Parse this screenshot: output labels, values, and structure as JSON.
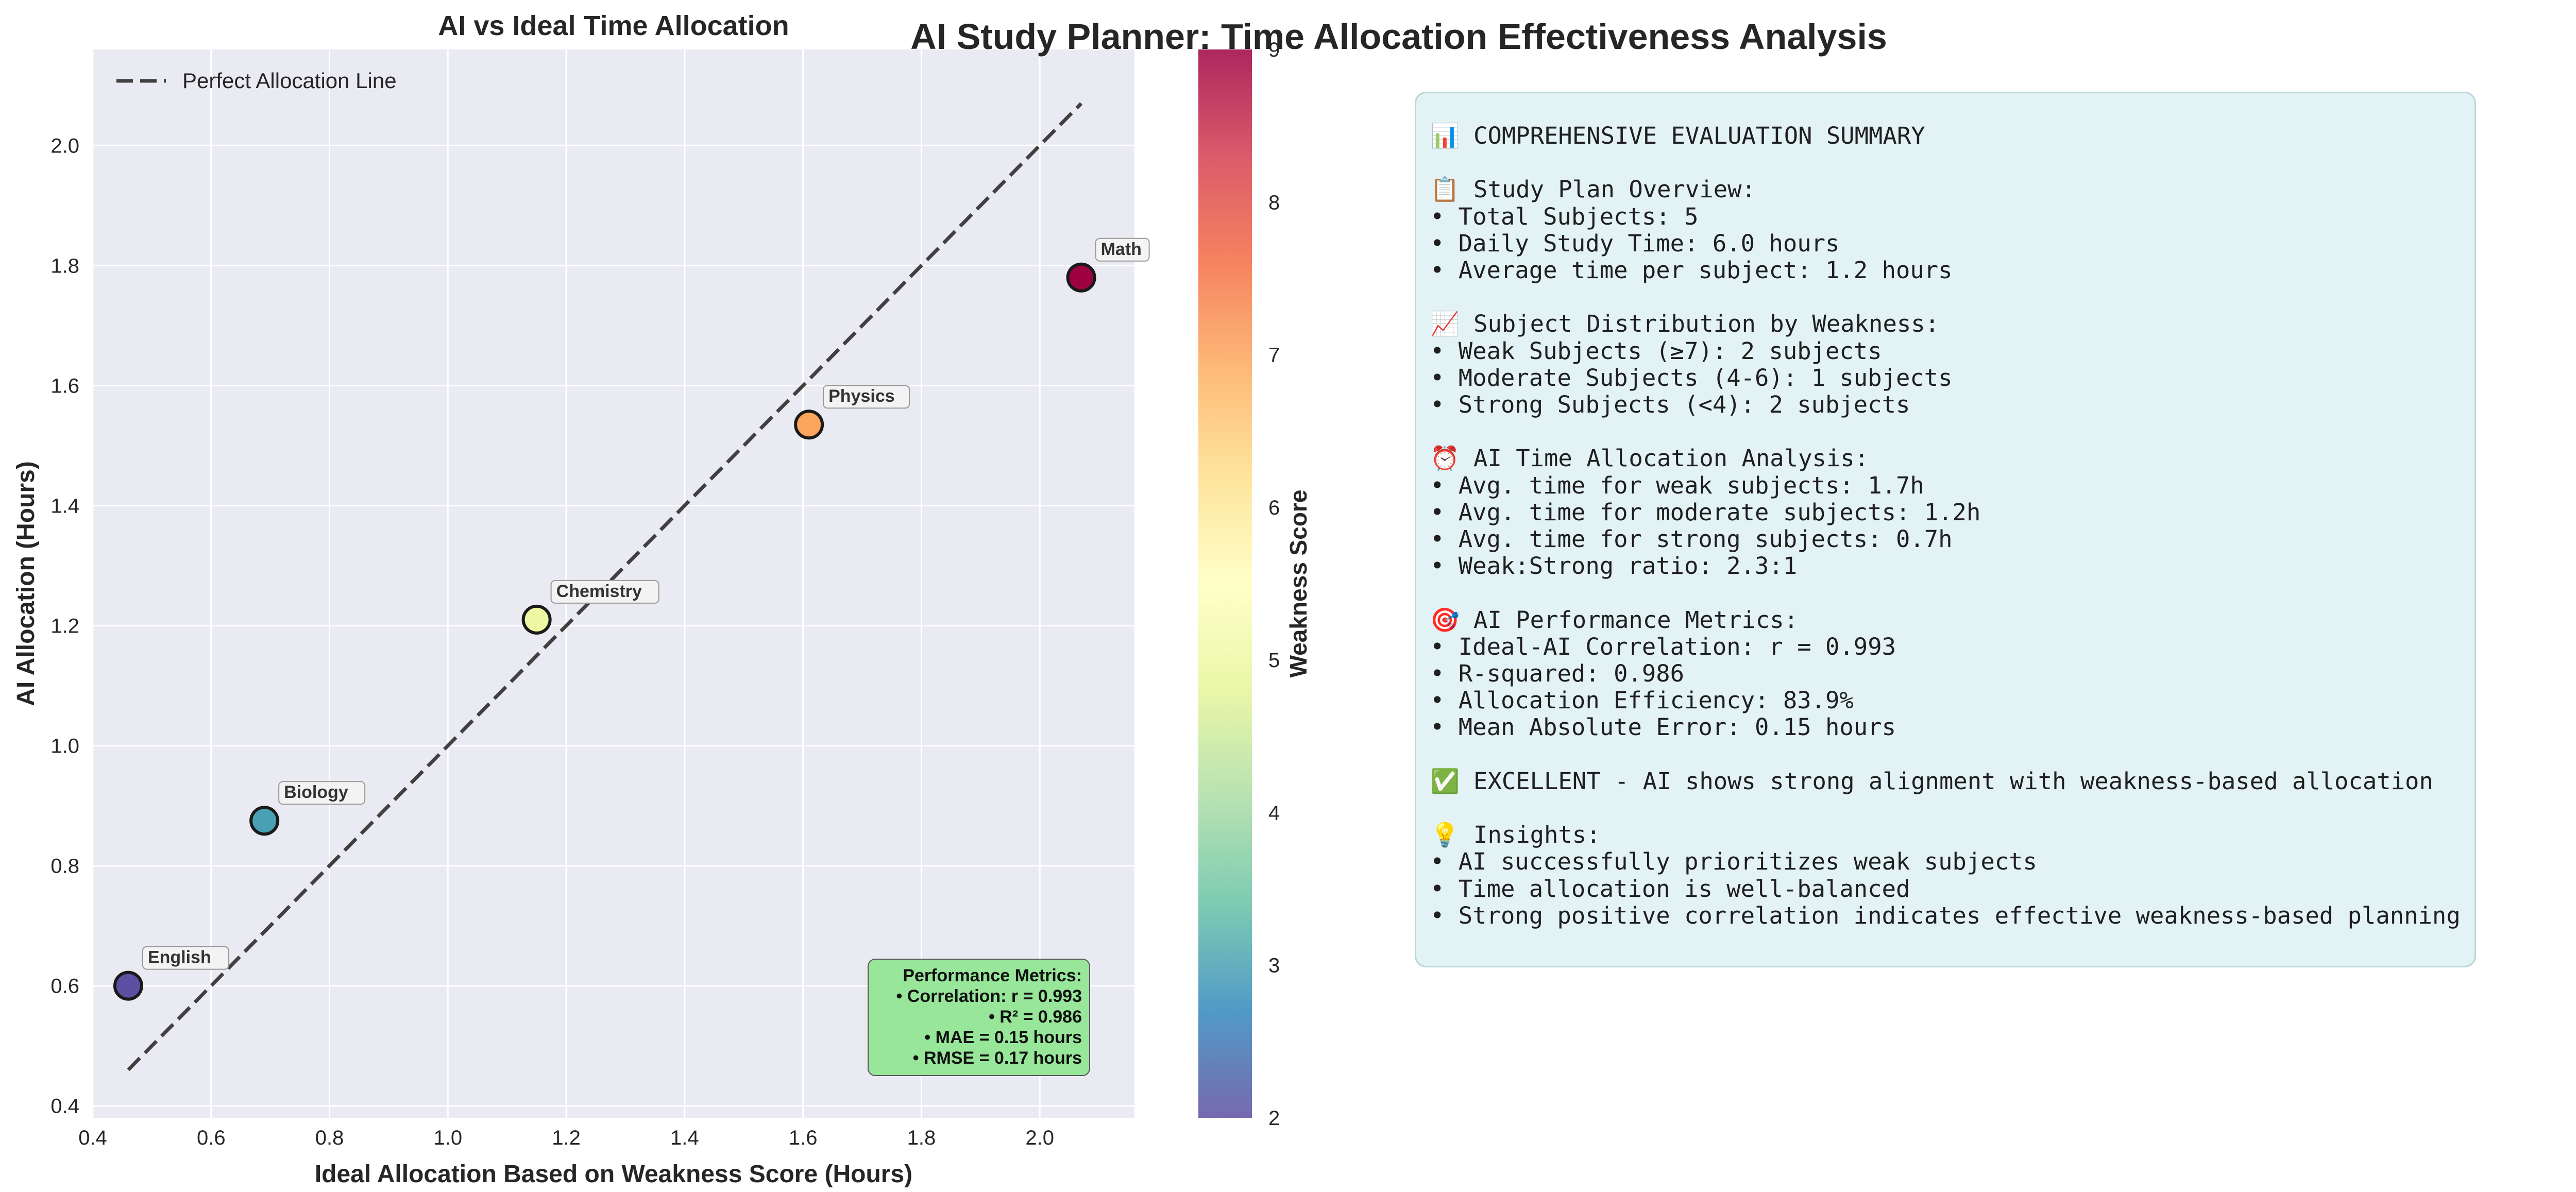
{
  "suptitle": "AI Study Planner: Time Allocation Effectiveness Analysis",
  "chart_data": {
    "type": "scatter",
    "title": "AI vs Ideal Time Allocation",
    "xlabel": "Ideal Allocation Based on Weakness Score (Hours)",
    "ylabel": "AI Allocation (Hours)",
    "xlim": [
      0.4,
      2.16
    ],
    "ylim": [
      0.38,
      2.16
    ],
    "xticks": [
      0.4,
      0.6,
      0.8,
      1.0,
      1.2,
      1.4,
      1.6,
      1.8,
      2.0
    ],
    "yticks": [
      0.4,
      0.6,
      0.8,
      1.0,
      1.2,
      1.4,
      1.6,
      1.8,
      2.0
    ],
    "grid": true,
    "legend_placement": "upper-left",
    "legend_entries": [
      "Perfect Allocation Line"
    ],
    "reference_line": {
      "name": "Perfect Allocation Line",
      "x": [
        0.46,
        2.07
      ],
      "y": [
        0.46,
        2.07
      ]
    },
    "points": [
      {
        "label": "English",
        "x": 0.46,
        "y": 0.6,
        "weakness": 2
      },
      {
        "label": "Biology",
        "x": 0.69,
        "y": 0.875,
        "weakness": 3
      },
      {
        "label": "Chemistry",
        "x": 1.15,
        "y": 1.21,
        "weakness": 5
      },
      {
        "label": "Physics",
        "x": 1.61,
        "y": 1.535,
        "weakness": 7
      },
      {
        "label": "Math",
        "x": 2.07,
        "y": 1.78,
        "weakness": 9
      }
    ],
    "colorbar": {
      "label": "Weakness Score",
      "range": [
        2,
        9
      ],
      "ticks": [
        2,
        3,
        4,
        5,
        6,
        7,
        8,
        9
      ],
      "colors": [
        "#5e4fa2",
        "#3288bd",
        "#66c2a5",
        "#abdda4",
        "#e6f598",
        "#ffffbf",
        "#fee08b",
        "#fdae61",
        "#f46d43",
        "#d53e4f",
        "#9e0142"
      ]
    },
    "metrics_box": {
      "title": "Performance Metrics:",
      "lines": [
        "• Correlation: r = 0.993",
        "• R² = 0.986",
        "• MAE = 0.15 hours",
        "• RMSE = 0.17 hours"
      ]
    }
  },
  "colors": {
    "axes_bg": "#eaeaf2",
    "grid": "#ffffff",
    "ref_line": "#404040",
    "metrics_bg": "#98e699",
    "summary_bg": "#e3f2f4"
  },
  "summary": {
    "text": "📊 COMPREHENSIVE EVALUATION SUMMARY\n\n📋 Study Plan Overview:\n• Total Subjects: 5\n• Daily Study Time: 6.0 hours\n• Average time per subject: 1.2 hours\n\n📈 Subject Distribution by Weakness:\n• Weak Subjects (≥7): 2 subjects\n• Moderate Subjects (4-6): 1 subjects\n• Strong Subjects (<4): 2 subjects\n\n⏰ AI Time Allocation Analysis:\n• Avg. time for weak subjects: 1.7h\n• Avg. time for moderate subjects: 1.2h\n• Avg. time for strong subjects: 0.7h\n• Weak:Strong ratio: 2.3:1\n\n🎯 AI Performance Metrics:\n• Ideal-AI Correlation: r = 0.993\n• R-squared: 0.986\n• Allocation Efficiency: 83.9%\n• Mean Absolute Error: 0.15 hours\n\n✅ EXCELLENT - AI shows strong alignment with weakness-based allocation\n\n💡 Insights:\n• AI successfully prioritizes weak subjects\n• Time allocation is well-balanced\n• Strong positive correlation indicates effective weakness-based planning"
  }
}
